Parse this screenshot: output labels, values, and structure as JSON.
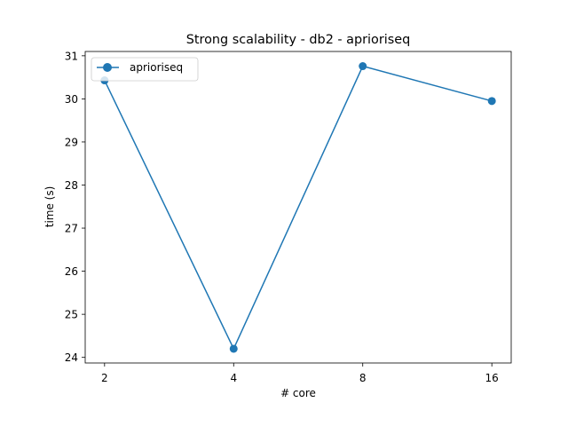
{
  "chart_data": {
    "type": "line",
    "title": "Strong scalability - db2 - aprioriseq",
    "xlabel": "# core",
    "ylabel": "time (s)",
    "categories": [
      "2",
      "4",
      "8",
      "16"
    ],
    "series": [
      {
        "name": "aprioriseq",
        "values": [
          30.43,
          24.2,
          30.76,
          29.95
        ],
        "color": "#1f77b4",
        "marker": "circle"
      }
    ],
    "yticks": [
      "24",
      "25",
      "26",
      "27",
      "28",
      "29",
      "30",
      "31"
    ],
    "ylim": [
      23.87,
      31.1
    ],
    "grid": false,
    "legend": "top-left"
  }
}
